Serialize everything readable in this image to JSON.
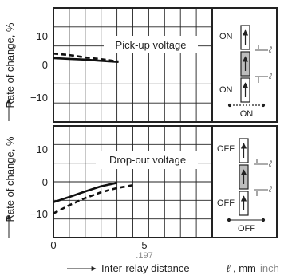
{
  "chart_data": [
    {
      "type": "line",
      "title": "Pick-up voltage",
      "xlabel": "Inter-relay distance",
      "ylabel": "Rate of change, %",
      "xlim": [
        0,
        10
      ],
      "ylim": [
        -15,
        15
      ],
      "yticks": [
        "10",
        "0",
        "−10"
      ],
      "series": [
        {
          "style": "solid",
          "x": [
            0,
            1,
            2,
            3,
            4.1
          ],
          "y": [
            1.8,
            1.6,
            1.4,
            1.1,
            0.8
          ]
        },
        {
          "style": "dashed",
          "x": [
            0,
            1,
            2,
            3,
            4.1
          ],
          "y": [
            3.0,
            2.6,
            2.0,
            1.5,
            0.9
          ]
        }
      ]
    },
    {
      "type": "line",
      "title": "Drop-out voltage",
      "xlabel": "Inter-relay distance",
      "ylabel": "Rate of change, %",
      "xlim": [
        0,
        10
      ],
      "ylim": [
        -15,
        15
      ],
      "yticks": [
        "10",
        "0",
        "−10"
      ],
      "series": [
        {
          "style": "solid",
          "x": [
            0,
            1,
            2,
            3,
            4
          ],
          "y": [
            -5.5,
            -4.1,
            -2.6,
            -1.2,
            -0.3
          ]
        },
        {
          "style": "dashed",
          "x": [
            0,
            1,
            2,
            3,
            4,
            5
          ],
          "y": [
            -8.5,
            -6.3,
            -4.4,
            -2.8,
            -1.7,
            -0.9
          ]
        }
      ]
    }
  ],
  "labels": {
    "ylabel": "Rate of change, %",
    "top_title": "Pick-up voltage",
    "bottom_title": "Drop-out voltage",
    "yticks": [
      "10",
      "0",
      "−10"
    ],
    "x_tick_0": "0",
    "x_tick_5": "5",
    "x_tick_5_inch": ".197",
    "xlabel": "Inter-relay distance",
    "xlabel_var": "ℓ",
    "xlabel_unit": ", mm",
    "xlabel_unit_inch": "inch"
  },
  "diagram_top": {
    "on_top": "ON",
    "on_bottom": "ON",
    "caption": "ON",
    "ell_1": "ℓ",
    "ell_2": "ℓ"
  },
  "diagram_bottom": {
    "off_top": "OFF",
    "off_bottom": "OFF",
    "caption": "OFF",
    "ell_1": "ℓ",
    "ell_2": "ℓ"
  }
}
